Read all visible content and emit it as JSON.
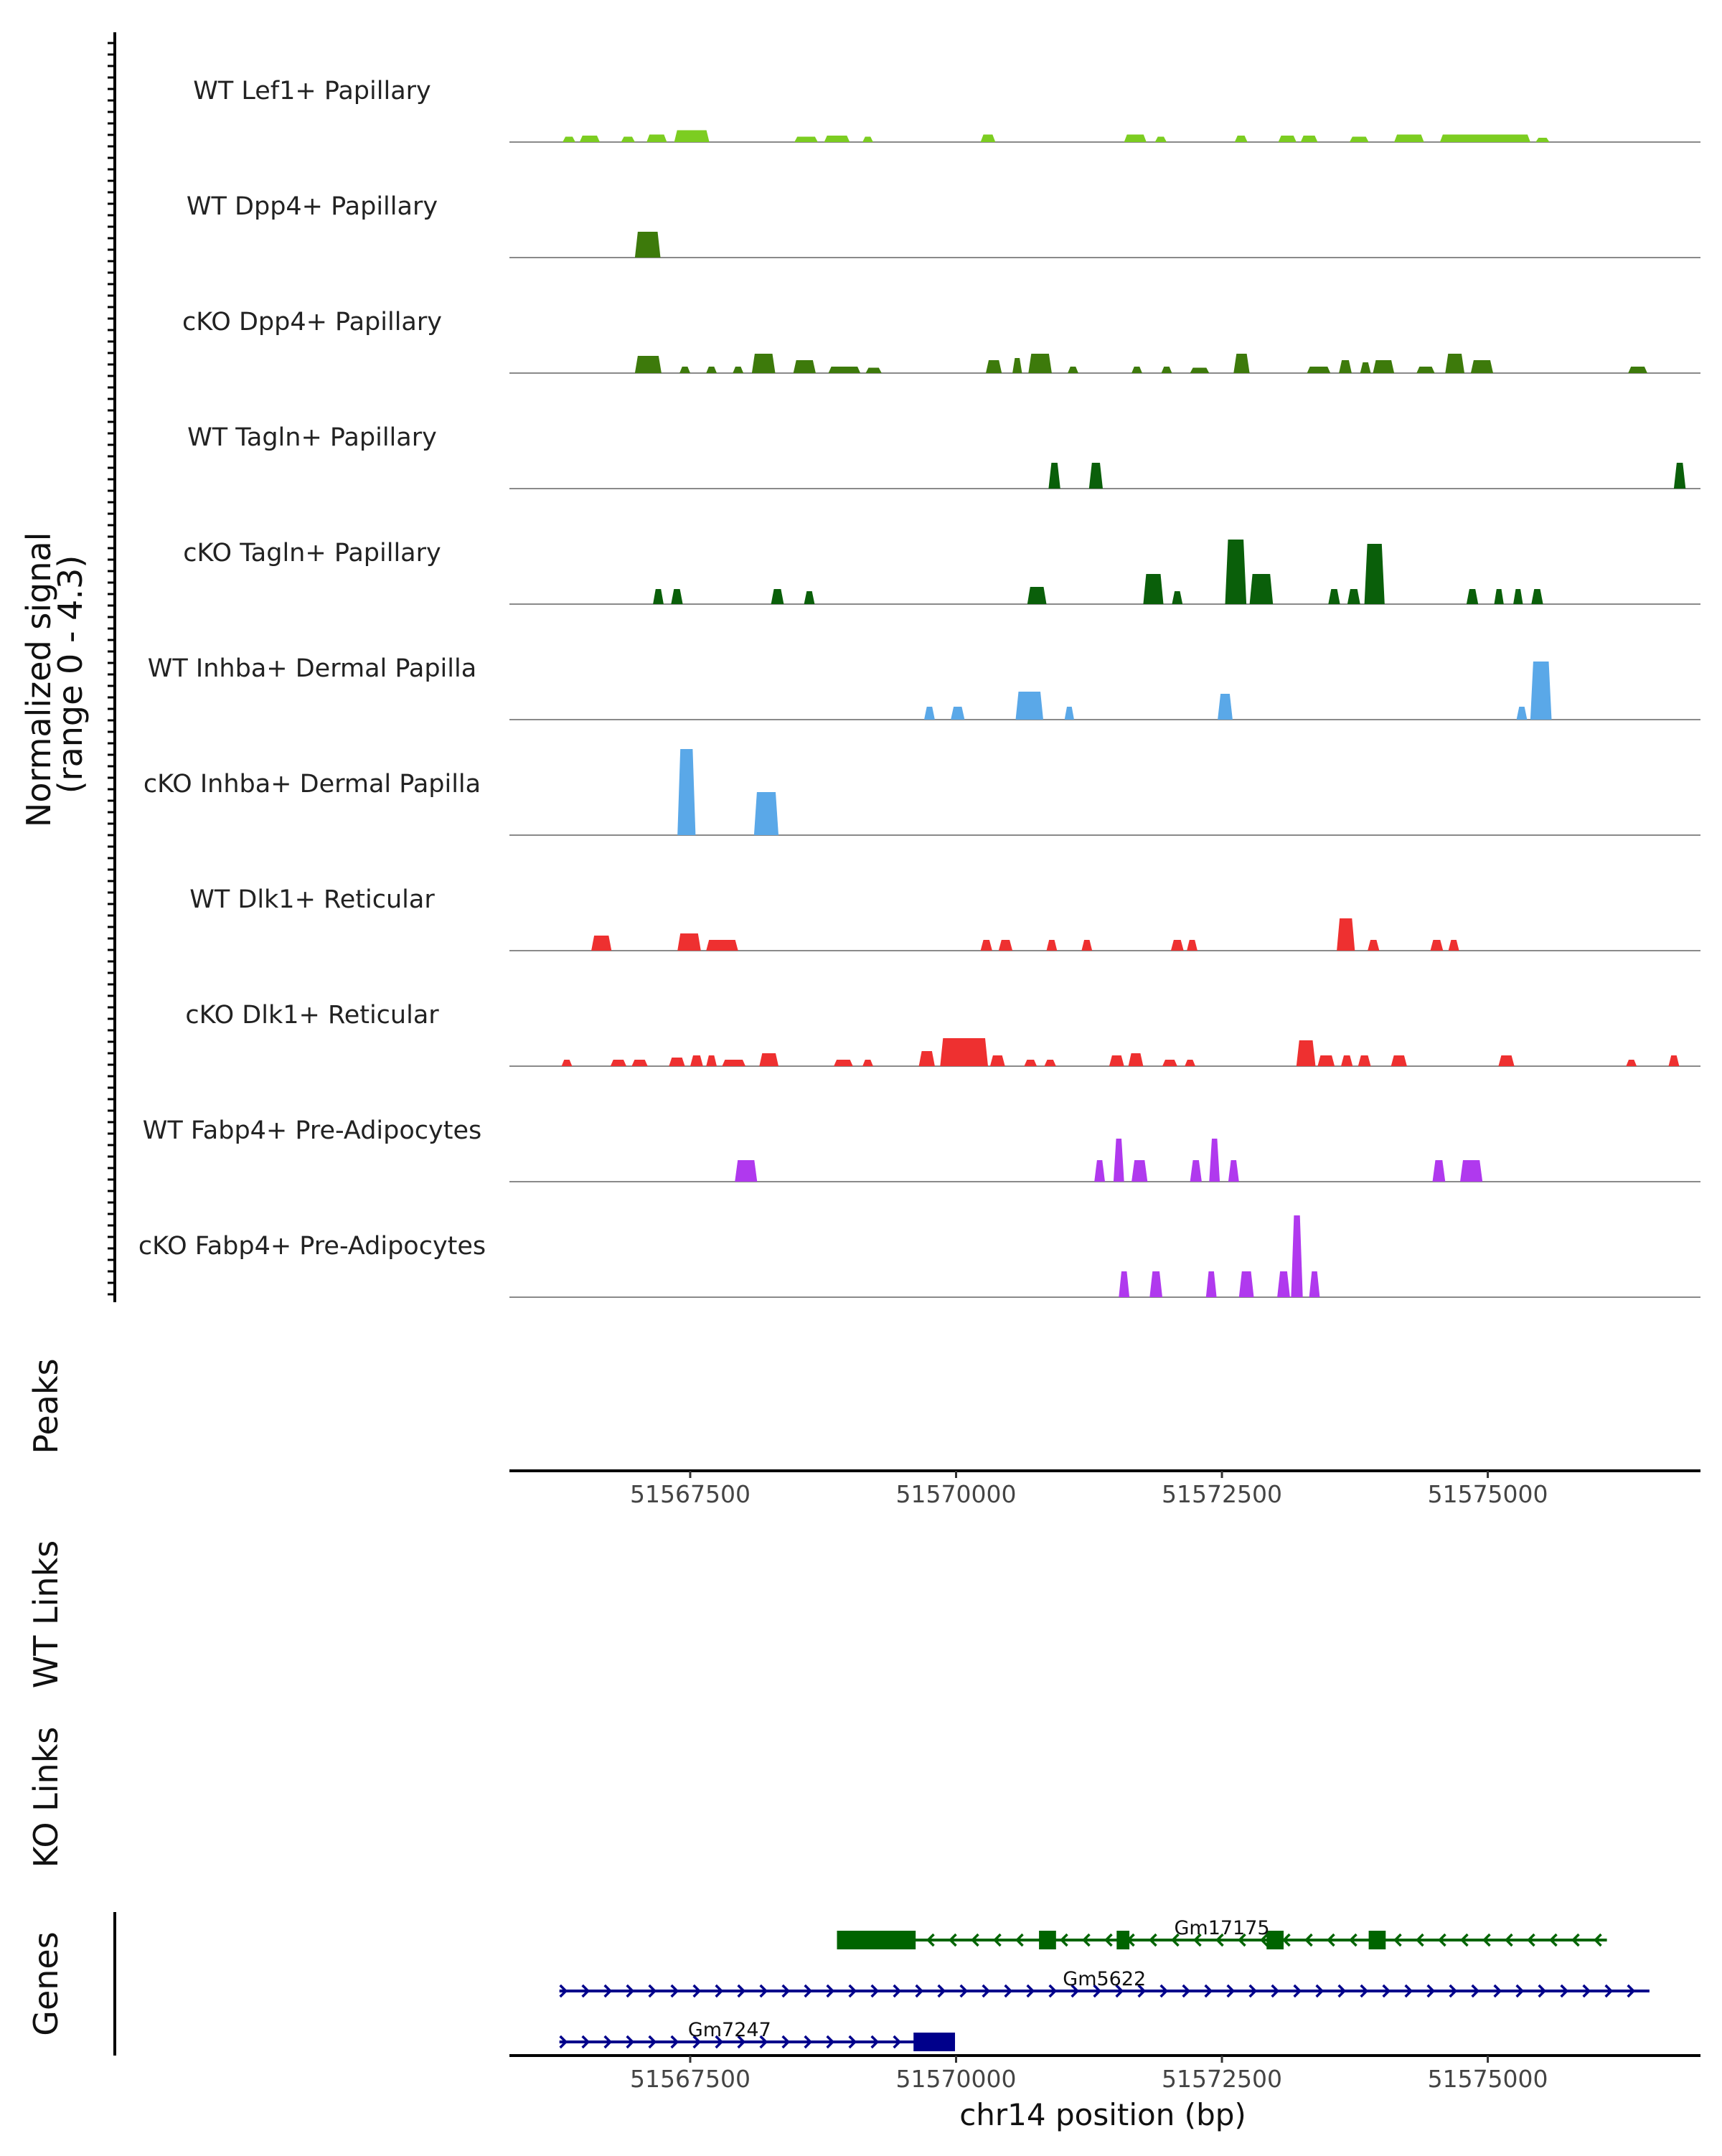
{
  "chart_data": {
    "type": "area",
    "ylabel_line1": "Normalized signal",
    "ylabel_line2": "(range 0 - 4.3)",
    "yrange": [
      0,
      4.3
    ],
    "xlabel": "chr14 position (bp)",
    "xlim": [
      51565800,
      51577000
    ],
    "xticks": [
      51567500,
      51570000,
      51572500,
      51575000
    ],
    "tick_labels": [
      "51567500",
      "51570000",
      "51572500",
      "51575000"
    ],
    "panel_labels": {
      "peaks": "Peaks",
      "wt_links": "WT Links",
      "ko_links": "KO Links",
      "genes": "Genes"
    },
    "tracks": [
      {
        "name": "WT Lef1+ Papillary",
        "color": "#7ccd21",
        "regions": [
          [
            51566300,
            51566420,
            0.25
          ],
          [
            51566460,
            51566650,
            0.3
          ],
          [
            51566850,
            51566980,
            0.25
          ],
          [
            51567090,
            51567280,
            0.35
          ],
          [
            51567350,
            51567680,
            0.55
          ],
          [
            51568480,
            51568700,
            0.25
          ],
          [
            51568760,
            51569000,
            0.3
          ],
          [
            51569120,
            51569220,
            0.25
          ],
          [
            51570230,
            51570370,
            0.35
          ],
          [
            51571580,
            51571790,
            0.35
          ],
          [
            51571870,
            51571980,
            0.25
          ],
          [
            51572620,
            51572740,
            0.3
          ],
          [
            51573030,
            51573200,
            0.3
          ],
          [
            51573240,
            51573400,
            0.3
          ],
          [
            51573700,
            51573880,
            0.25
          ],
          [
            51574120,
            51574400,
            0.35
          ],
          [
            51574550,
            51575400,
            0.35
          ],
          [
            51575450,
            51575580,
            0.2
          ]
        ]
      },
      {
        "name": "WT Dpp4+ Papillary",
        "color": "#3d7a0b",
        "regions": [
          [
            51566980,
            51567220,
            1.2
          ]
        ]
      },
      {
        "name": "cKO Dpp4+ Papillary",
        "color": "#3d7a0b",
        "regions": [
          [
            51566980,
            51567230,
            0.8
          ],
          [
            51567400,
            51567500,
            0.3
          ],
          [
            51567650,
            51567750,
            0.3
          ],
          [
            51567900,
            51568000,
            0.3
          ],
          [
            51568080,
            51568300,
            0.9
          ],
          [
            51568470,
            51568680,
            0.6
          ],
          [
            51568800,
            51569100,
            0.3
          ],
          [
            51569150,
            51569300,
            0.25
          ],
          [
            51570280,
            51570430,
            0.6
          ],
          [
            51570530,
            51570620,
            0.7
          ],
          [
            51570680,
            51570900,
            0.9
          ],
          [
            51571050,
            51571150,
            0.3
          ],
          [
            51571650,
            51571750,
            0.3
          ],
          [
            51571930,
            51572030,
            0.3
          ],
          [
            51572200,
            51572380,
            0.25
          ],
          [
            51572610,
            51572760,
            0.9
          ],
          [
            51573300,
            51573520,
            0.3
          ],
          [
            51573600,
            51573720,
            0.6
          ],
          [
            51573800,
            51573900,
            0.5
          ],
          [
            51573920,
            51574120,
            0.6
          ],
          [
            51574330,
            51574500,
            0.3
          ],
          [
            51574600,
            51574780,
            0.9
          ],
          [
            51574840,
            51575050,
            0.6
          ],
          [
            51576320,
            51576500,
            0.3
          ]
        ]
      },
      {
        "name": "WT Tagln+ Papillary",
        "color": "#0a5f0a",
        "regions": [
          [
            51570870,
            51570980,
            1.2
          ],
          [
            51571250,
            51571380,
            1.2
          ],
          [
            51576750,
            51576860,
            1.2
          ]
        ]
      },
      {
        "name": "cKO Tagln+ Papillary",
        "color": "#0a5f0a",
        "regions": [
          [
            51567150,
            51567250,
            0.7
          ],
          [
            51567320,
            51567430,
            0.7
          ],
          [
            51568260,
            51568380,
            0.7
          ],
          [
            51568570,
            51568670,
            0.6
          ],
          [
            51570670,
            51570850,
            0.8
          ],
          [
            51571760,
            51571950,
            1.4
          ],
          [
            51572030,
            51572130,
            0.6
          ],
          [
            51572530,
            51572730,
            3.0
          ],
          [
            51572760,
            51572980,
            1.4
          ],
          [
            51573500,
            51573610,
            0.7
          ],
          [
            51573680,
            51573800,
            0.7
          ],
          [
            51573840,
            51574030,
            2.8
          ],
          [
            51574800,
            51574910,
            0.7
          ],
          [
            51575060,
            51575150,
            0.7
          ],
          [
            51575240,
            51575330,
            0.7
          ],
          [
            51575410,
            51575520,
            0.7
          ]
        ]
      },
      {
        "name": "WT Inhba+ Dermal Papilla",
        "color": "#5aa8e8",
        "regions": [
          [
            51569700,
            51569800,
            0.6
          ],
          [
            51569950,
            51570080,
            0.6
          ],
          [
            51570560,
            51570820,
            1.3
          ],
          [
            51571020,
            51571110,
            0.6
          ],
          [
            51572460,
            51572600,
            1.2
          ],
          [
            51575270,
            51575370,
            0.6
          ],
          [
            51575400,
            51575600,
            2.7
          ]
        ]
      },
      {
        "name": "cKO Inhba+ Dermal Papilla",
        "color": "#5aa8e8",
        "regions": [
          [
            51567380,
            51567550,
            4.0
          ],
          [
            51568100,
            51568330,
            2.0
          ]
        ]
      },
      {
        "name": "WT Dlk1+ Reticular",
        "color": "#ee3030",
        "regions": [
          [
            51566570,
            51566760,
            0.7
          ],
          [
            51567380,
            51567600,
            0.8
          ],
          [
            51567650,
            51567950,
            0.5
          ],
          [
            51570230,
            51570340,
            0.5
          ],
          [
            51570400,
            51570530,
            0.5
          ],
          [
            51570850,
            51570950,
            0.5
          ],
          [
            51571180,
            51571280,
            0.5
          ],
          [
            51572020,
            51572140,
            0.5
          ],
          [
            51572170,
            51572270,
            0.5
          ],
          [
            51573580,
            51573750,
            1.5
          ],
          [
            51573870,
            51573980,
            0.5
          ],
          [
            51574460,
            51574580,
            0.5
          ],
          [
            51574630,
            51574730,
            0.5
          ]
        ]
      },
      {
        "name": "cKO Dlk1+ Reticular",
        "color": "#ee3030",
        "regions": [
          [
            51566290,
            51566390,
            0.3
          ],
          [
            51566750,
            51566900,
            0.3
          ],
          [
            51566950,
            51567100,
            0.3
          ],
          [
            51567300,
            51567450,
            0.4
          ],
          [
            51567500,
            51567620,
            0.5
          ],
          [
            51567650,
            51567750,
            0.5
          ],
          [
            51567800,
            51568020,
            0.3
          ],
          [
            51568150,
            51568330,
            0.6
          ],
          [
            51568850,
            51569030,
            0.3
          ],
          [
            51569120,
            51569220,
            0.3
          ],
          [
            51569650,
            51569800,
            0.7
          ],
          [
            51569850,
            51570300,
            1.3
          ],
          [
            51570320,
            51570460,
            0.5
          ],
          [
            51570640,
            51570760,
            0.3
          ],
          [
            51570830,
            51570940,
            0.3
          ],
          [
            51571440,
            51571580,
            0.5
          ],
          [
            51571620,
            51571760,
            0.6
          ],
          [
            51571940,
            51572080,
            0.3
          ],
          [
            51572150,
            51572250,
            0.3
          ],
          [
            51573200,
            51573380,
            1.2
          ],
          [
            51573400,
            51573560,
            0.5
          ],
          [
            51573620,
            51573730,
            0.5
          ],
          [
            51573780,
            51573900,
            0.5
          ],
          [
            51574090,
            51574240,
            0.5
          ],
          [
            51575100,
            51575250,
            0.5
          ],
          [
            51576300,
            51576400,
            0.3
          ],
          [
            51576700,
            51576800,
            0.5
          ]
        ]
      },
      {
        "name": "WT Fabp4+ Pre-Adipocytes",
        "color": "#b039ee",
        "regions": [
          [
            51567920,
            51568130,
            1.0
          ],
          [
            51571300,
            51571400,
            1.0
          ],
          [
            51571480,
            51571580,
            2.0
          ],
          [
            51571650,
            51571800,
            1.0
          ],
          [
            51572200,
            51572310,
            1.0
          ],
          [
            51572380,
            51572480,
            2.0
          ],
          [
            51572560,
            51572660,
            1.0
          ],
          [
            51574480,
            51574600,
            1.0
          ],
          [
            51574740,
            51574950,
            1.0
          ]
        ]
      },
      {
        "name": "cKO Fabp4+ Pre-Adipocytes",
        "color": "#b039ee",
        "regions": [
          [
            51571530,
            51571630,
            1.2
          ],
          [
            51571820,
            51571940,
            1.2
          ],
          [
            51572350,
            51572450,
            1.2
          ],
          [
            51572660,
            51572800,
            1.2
          ],
          [
            51573020,
            51573140,
            1.2
          ],
          [
            51573150,
            51573260,
            3.8
          ],
          [
            51573320,
            51573420,
            1.2
          ]
        ]
      }
    ],
    "genes": [
      {
        "name": "Gm17175",
        "strand": "-",
        "color": "#006400",
        "start": 51568880,
        "end": 51576120,
        "exons": [
          [
            51568880,
            51569620
          ],
          [
            51570780,
            51570940
          ],
          [
            51571510,
            51571630
          ],
          [
            51572920,
            51573080
          ],
          [
            51573880,
            51574040
          ]
        ]
      },
      {
        "name": "Gm5622",
        "strand": "+",
        "color": "#00008b",
        "start": 51566270,
        "end": 51576520,
        "exons": []
      },
      {
        "name": "Gm7247",
        "strand": "+",
        "color": "#00008b",
        "start": 51566270,
        "end": 51569990,
        "exons": [
          [
            51569600,
            51569990
          ]
        ]
      }
    ]
  }
}
